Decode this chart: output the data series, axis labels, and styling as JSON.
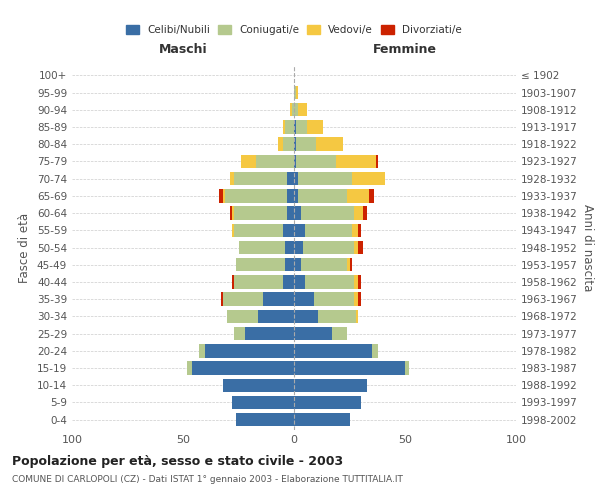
{
  "age_groups": [
    "0-4",
    "5-9",
    "10-14",
    "15-19",
    "20-24",
    "25-29",
    "30-34",
    "35-39",
    "40-44",
    "45-49",
    "50-54",
    "55-59",
    "60-64",
    "65-69",
    "70-74",
    "75-79",
    "80-84",
    "85-89",
    "90-94",
    "95-99",
    "100+"
  ],
  "birth_years": [
    "1998-2002",
    "1993-1997",
    "1988-1992",
    "1983-1987",
    "1978-1982",
    "1973-1977",
    "1968-1972",
    "1963-1967",
    "1958-1962",
    "1953-1957",
    "1948-1952",
    "1943-1947",
    "1938-1942",
    "1933-1937",
    "1928-1932",
    "1923-1927",
    "1918-1922",
    "1913-1917",
    "1908-1912",
    "1903-1907",
    "≤ 1902"
  ],
  "males": {
    "celibi": [
      26,
      28,
      32,
      46,
      40,
      22,
      16,
      14,
      5,
      4,
      4,
      5,
      3,
      3,
      3,
      0,
      0,
      0,
      0,
      0,
      0
    ],
    "coniugati": [
      0,
      0,
      0,
      2,
      3,
      5,
      14,
      18,
      22,
      22,
      21,
      22,
      24,
      28,
      24,
      17,
      5,
      4,
      1,
      0,
      0
    ],
    "vedovi": [
      0,
      0,
      0,
      0,
      0,
      0,
      0,
      0,
      0,
      0,
      0,
      1,
      1,
      1,
      2,
      7,
      2,
      1,
      1,
      0,
      0
    ],
    "divorziati": [
      0,
      0,
      0,
      0,
      0,
      0,
      0,
      1,
      1,
      0,
      0,
      0,
      1,
      2,
      0,
      0,
      0,
      0,
      0,
      0,
      0
    ]
  },
  "females": {
    "nubili": [
      25,
      30,
      33,
      50,
      35,
      17,
      11,
      9,
      5,
      3,
      4,
      5,
      3,
      2,
      2,
      1,
      1,
      1,
      0,
      0,
      0
    ],
    "coniugate": [
      0,
      0,
      0,
      2,
      3,
      7,
      17,
      18,
      22,
      21,
      23,
      21,
      24,
      22,
      24,
      18,
      9,
      5,
      2,
      1,
      0
    ],
    "vedove": [
      0,
      0,
      0,
      0,
      0,
      0,
      1,
      2,
      2,
      1,
      2,
      3,
      4,
      10,
      15,
      18,
      12,
      7,
      4,
      1,
      0
    ],
    "divorziate": [
      0,
      0,
      0,
      0,
      0,
      0,
      0,
      1,
      1,
      1,
      2,
      1,
      2,
      2,
      0,
      1,
      0,
      0,
      0,
      0,
      0
    ]
  },
  "colors": {
    "celibi": "#3a6ea5",
    "coniugati": "#b5c98e",
    "vedovi": "#f5c842",
    "divorziati": "#cc2200"
  },
  "title": "Popolazione per età, sesso e stato civile - 2003",
  "subtitle": "COMUNE DI CARLOPOLI (CZ) - Dati ISTAT 1° gennaio 2003 - Elaborazione TUTTITALIA.IT",
  "xlabel_left": "Maschi",
  "xlabel_right": "Femmine",
  "ylabel_left": "Fasce di età",
  "ylabel_right": "Anni di nascita",
  "xlim": 100,
  "legend_labels": [
    "Celibi/Nubili",
    "Coniugati/e",
    "Vedovi/e",
    "Divorziati/e"
  ],
  "background_color": "#ffffff",
  "grid_color": "#cccccc"
}
